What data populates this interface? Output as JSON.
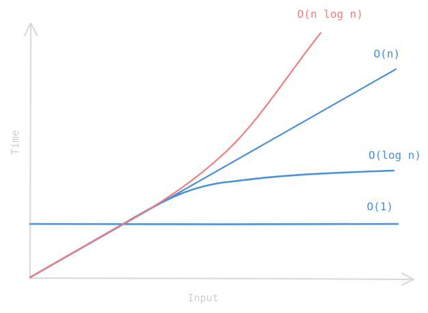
{
  "diagram": {
    "x_axis_label": "Input",
    "y_axis_label": "Time",
    "curves": {
      "n_log_n": {
        "label": "O(n log n)"
      },
      "linear": {
        "label": "O(n)"
      },
      "log_n": {
        "label": "O(log n)"
      },
      "constant": {
        "label": "O(1)"
      }
    }
  },
  "colors": {
    "axis": "#dadada",
    "axis_label": "#cfcfcf",
    "n_log_n": "#f27c7c",
    "blue": "#4a90d9"
  }
}
